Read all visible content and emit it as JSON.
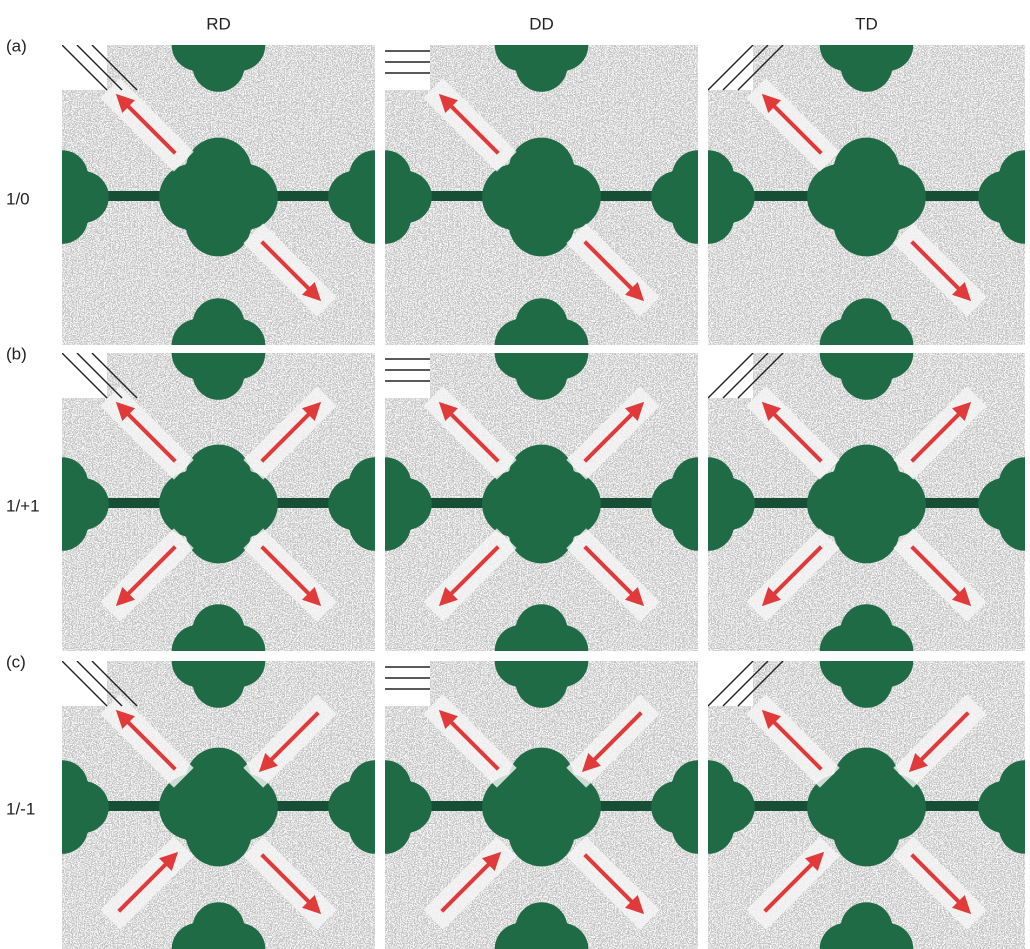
{
  "columns": [
    "RD",
    "DD",
    "TD"
  ],
  "rows": [
    {
      "label": "(a)",
      "ratio": "1/0"
    },
    {
      "label": "(b)",
      "ratio": "1/+1"
    },
    {
      "label": "(c)",
      "ratio": "1/-1"
    }
  ]
}
